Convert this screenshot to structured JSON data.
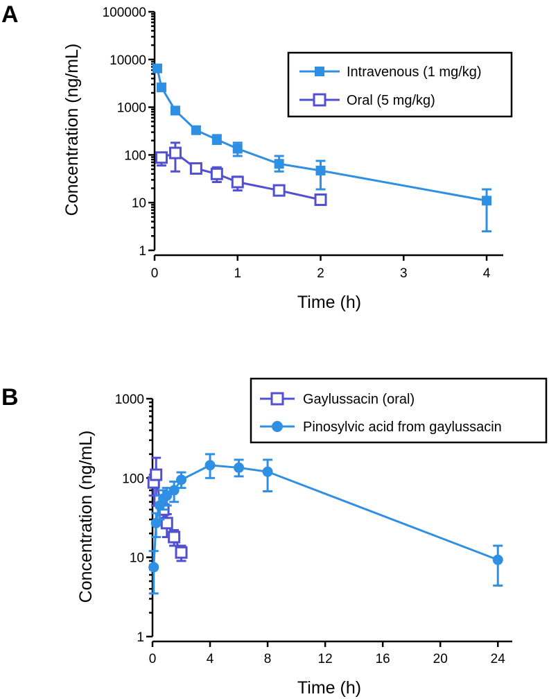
{
  "chart_data": [
    {
      "panel": "A",
      "type": "line",
      "xlabel": "Time (h)",
      "ylabel": "Concentration (ng/mL)",
      "yscale": "log",
      "xlim": [
        0,
        4.2
      ],
      "ylim": [
        1,
        100000
      ],
      "xticks": [
        0,
        1,
        2,
        3,
        4
      ],
      "yticks": [
        1,
        10,
        100,
        1000,
        10000,
        100000
      ],
      "legend_position": "top-right",
      "series": [
        {
          "name": "Intravenous (1 mg/kg)",
          "marker": "square-filled",
          "color": "#2f8fe3",
          "x": [
            0.033,
            0.083,
            0.25,
            0.5,
            0.75,
            1,
            1.5,
            2,
            4
          ],
          "y": [
            6500,
            2600,
            850,
            330,
            210,
            135,
            65,
            47,
            11
          ],
          "err_lo": [
            5500,
            2250,
            730,
            290,
            170,
            95,
            45,
            19,
            2.5
          ],
          "err_hi": [
            7600,
            3000,
            970,
            380,
            260,
            180,
            95,
            75,
            19
          ]
        },
        {
          "name": "Oral (5 mg/kg)",
          "marker": "square-open",
          "color": "#5050d0",
          "x": [
            0.083,
            0.25,
            0.5,
            0.75,
            1,
            1.5,
            2
          ],
          "y": [
            88,
            110,
            52,
            40,
            27,
            18,
            11.5
          ],
          "err_lo": [
            60,
            45,
            52,
            27,
            18,
            18,
            11.5
          ],
          "err_hi": [
            110,
            180,
            52,
            55,
            35,
            18,
            11.5
          ]
        }
      ]
    },
    {
      "panel": "B",
      "type": "line",
      "xlabel": "Time (h)",
      "ylabel": "Concentration (ng/mL)",
      "yscale": "log",
      "xlim": [
        0,
        25
      ],
      "ylim": [
        1,
        1000
      ],
      "xticks": [
        0,
        4,
        8,
        12,
        16,
        20,
        24
      ],
      "yticks": [
        1,
        10,
        100,
        1000
      ],
      "legend_position": "top-right",
      "series": [
        {
          "name": "Gaylussacin (oral)",
          "marker": "square-open",
          "color": "#5050d0",
          "x": [
            0.083,
            0.25,
            0.5,
            0.75,
            1,
            1.5,
            2
          ],
          "y": [
            88,
            110,
            52,
            40,
            27,
            18,
            11.5
          ],
          "err_lo": [
            60,
            45,
            52,
            27,
            18,
            14,
            9
          ],
          "err_hi": [
            110,
            180,
            52,
            55,
            35,
            22,
            14
          ]
        },
        {
          "name": "Pinosylvic acid from gaylussacin",
          "marker": "circle-filled",
          "color": "#2f8fe3",
          "x": [
            0.083,
            0.25,
            0.5,
            0.75,
            1,
            1.5,
            2,
            4,
            6,
            8,
            24
          ],
          "y": [
            7.5,
            27,
            45,
            55,
            60,
            70,
            95,
            145,
            135,
            120,
            9.3
          ],
          "err_lo": [
            3.5,
            18,
            30,
            40,
            45,
            50,
            75,
            100,
            105,
            68,
            4.4
          ],
          "err_hi": [
            12,
            36,
            60,
            70,
            75,
            90,
            118,
            200,
            170,
            170,
            14
          ]
        }
      ]
    }
  ],
  "panels": [
    {
      "letter": "A",
      "ylabel": "Concentration (ng/mL)",
      "xlabel": "Time (h)",
      "ytick_labels": [
        "1",
        "10",
        "100",
        "1000",
        "10000",
        "100000"
      ],
      "xtick_labels": [
        "0",
        "1",
        "2",
        "3",
        "4"
      ],
      "legend": [
        "Intravenous (1 mg/kg)",
        "Oral (5 mg/kg)"
      ]
    },
    {
      "letter": "B",
      "ylabel": "Concentration (ng/mL)",
      "xlabel": "Time (h)",
      "ytick_labels": [
        "1",
        "10",
        "100",
        "1000"
      ],
      "xtick_labels": [
        "0",
        "4",
        "8",
        "12",
        "16",
        "20",
        "24"
      ],
      "legend": [
        "Gaylussacin (oral)",
        "Pinosylvic acid from gaylussacin"
      ]
    }
  ]
}
